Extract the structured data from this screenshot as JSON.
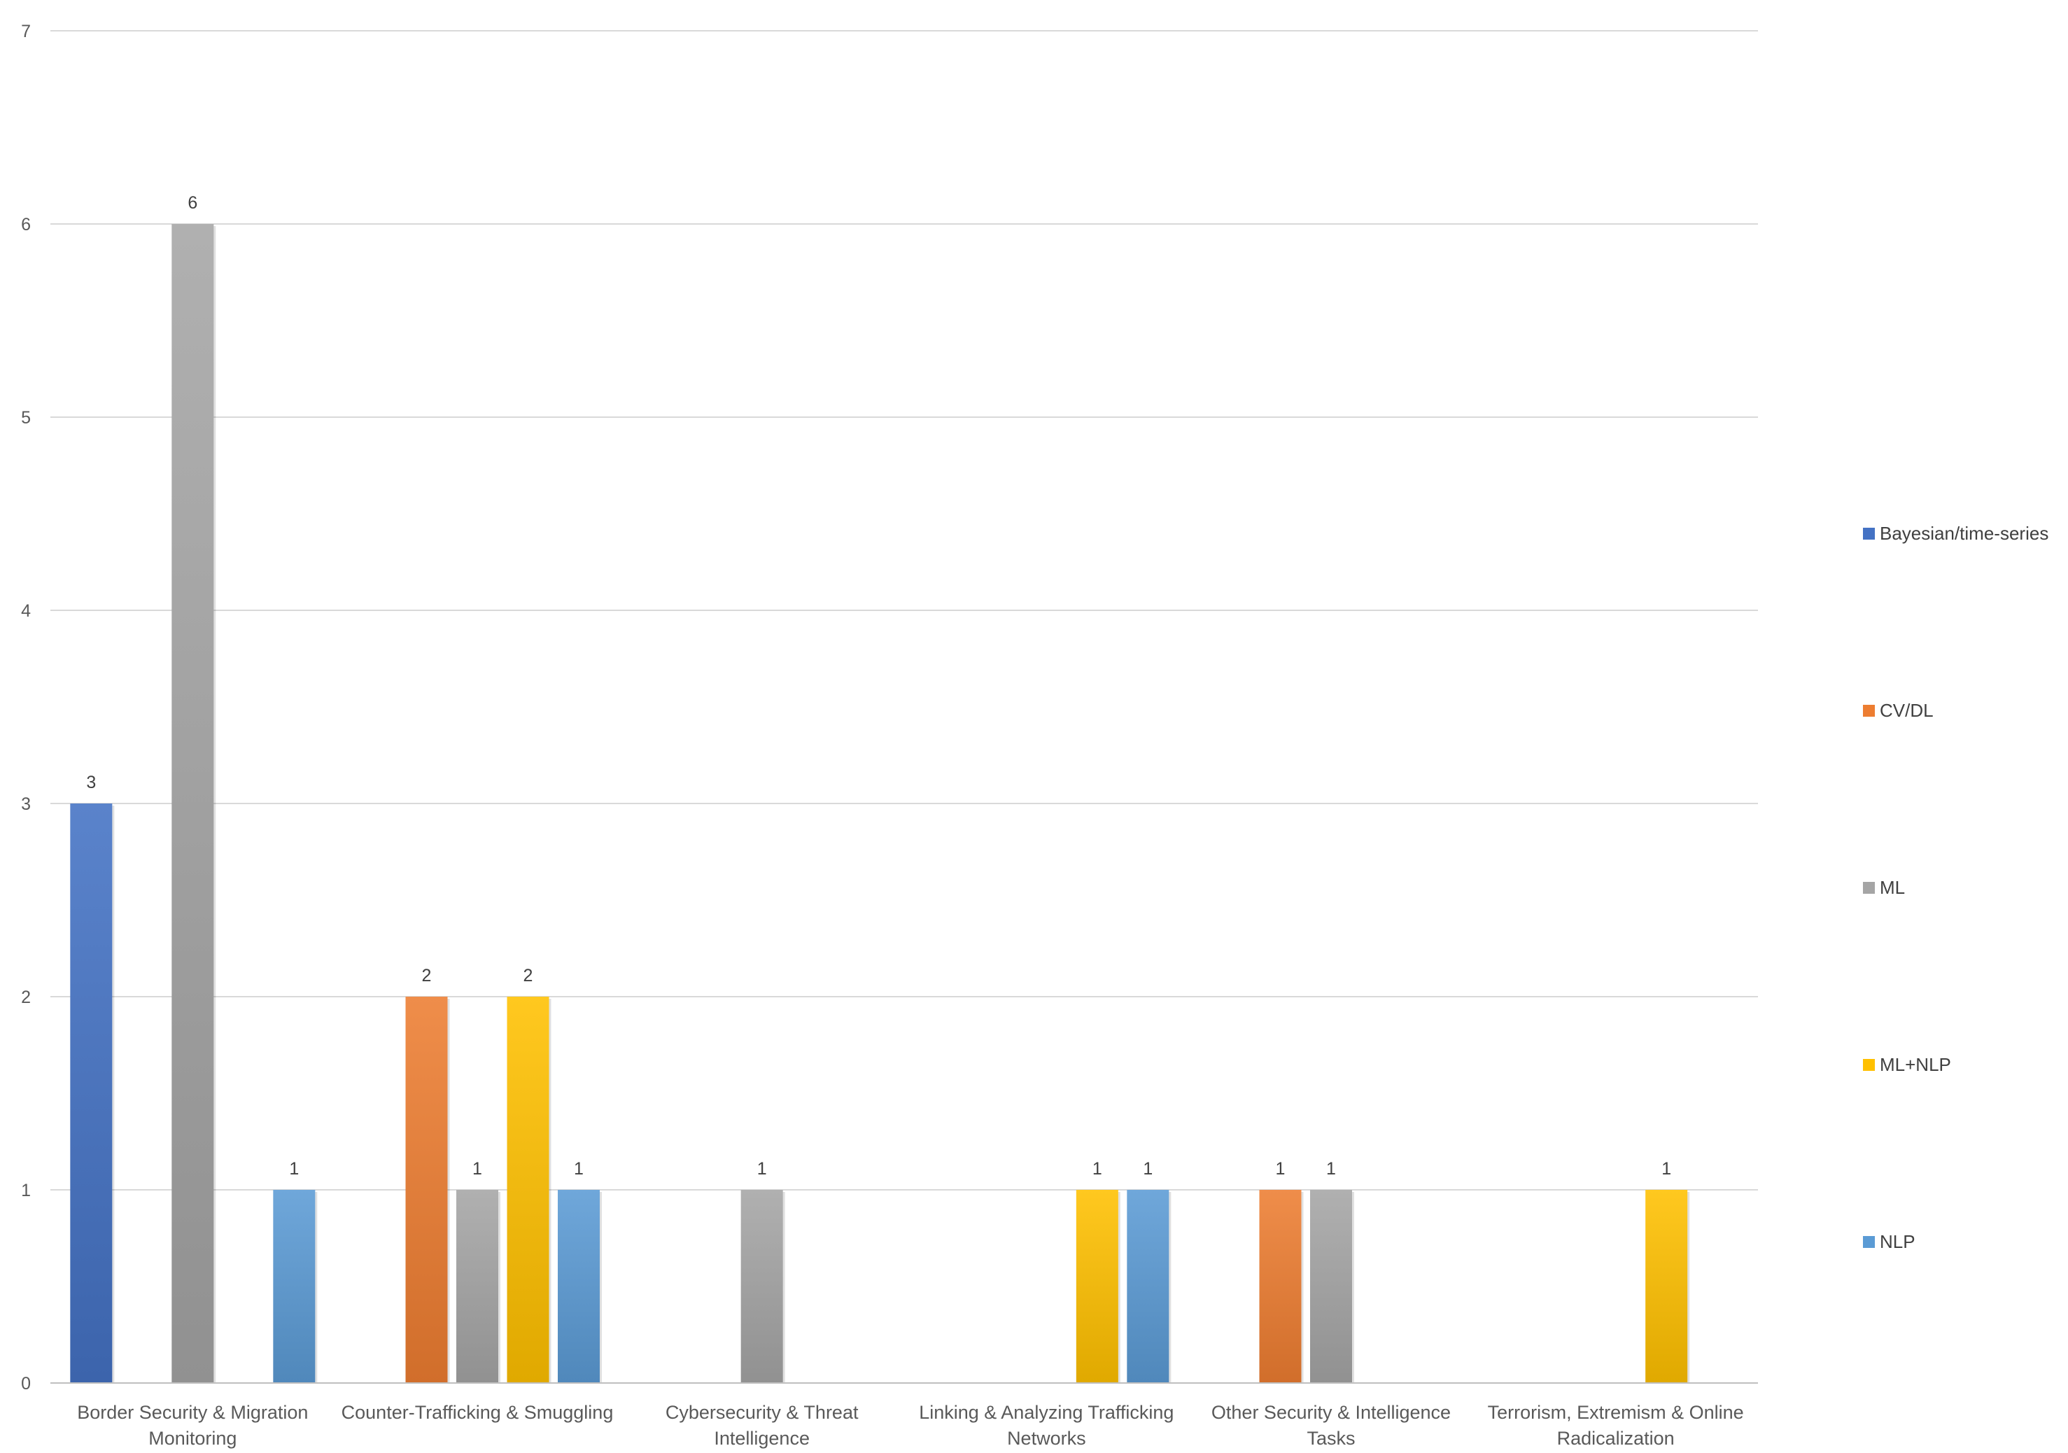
{
  "chart_data": {
    "type": "bar",
    "title": "",
    "xlabel": "",
    "ylabel": "",
    "ylim": [
      0,
      7
    ],
    "yticks": [
      "0",
      "1",
      "2",
      "3",
      "4",
      "5",
      "6",
      "7"
    ],
    "grid": true,
    "legend_position": "right",
    "categories": [
      [
        "Border Security & Migration",
        "Monitoring"
      ],
      [
        "Counter-Trafficking & Smuggling"
      ],
      [
        "Cybersecurity & Threat",
        "Intelligence"
      ],
      [
        "Linking & Analyzing Trafficking",
        "Networks"
      ],
      [
        "Other Security & Intelligence",
        "Tasks"
      ],
      [
        "Terrorism, Extremism & Online",
        "Radicalization"
      ]
    ],
    "series": [
      {
        "name": "Bayesian/time-series",
        "color": "#4472C4",
        "values": [
          3,
          null,
          null,
          null,
          null,
          null
        ]
      },
      {
        "name": "CV/DL",
        "color": "#ED7D31",
        "values": [
          null,
          2,
          null,
          null,
          1,
          null
        ]
      },
      {
        "name": "ML",
        "color": "#A5A5A5",
        "values": [
          6,
          1,
          1,
          null,
          1,
          null
        ]
      },
      {
        "name": "ML+NLP",
        "color": "#FFC000",
        "values": [
          null,
          2,
          null,
          1,
          null,
          1
        ]
      },
      {
        "name": "NLP",
        "color": "#5B9BD5",
        "values": [
          1,
          1,
          null,
          1,
          null,
          null
        ]
      }
    ]
  }
}
